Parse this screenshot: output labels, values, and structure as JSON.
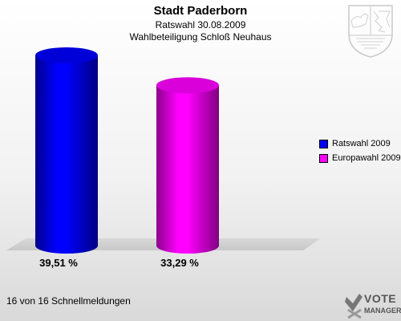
{
  "chart_data": {
    "type": "bar",
    "title": "Stadt Paderborn",
    "subtitle": "Ratswahl 30.08.2009",
    "subtitle2": "Wahlbeteiligung Schloß Neuhaus",
    "categories": [
      "Ratswahl 2009",
      "Europawahl 2009"
    ],
    "values": [
      39.51,
      33.29
    ],
    "value_labels": [
      "39,51 %",
      "33,29 %"
    ],
    "colors": [
      "#0000ff",
      "#ff00ff"
    ],
    "legend_position": "right",
    "grid": false
  },
  "footer": {
    "text": "16 von 16 Schnellmeldungen"
  },
  "logo": {
    "line1": "VOTE",
    "line2": "MANAGER"
  },
  "icons": {
    "crest": "nrw-crest-icon",
    "logo": "votemanager-logo-icon"
  }
}
